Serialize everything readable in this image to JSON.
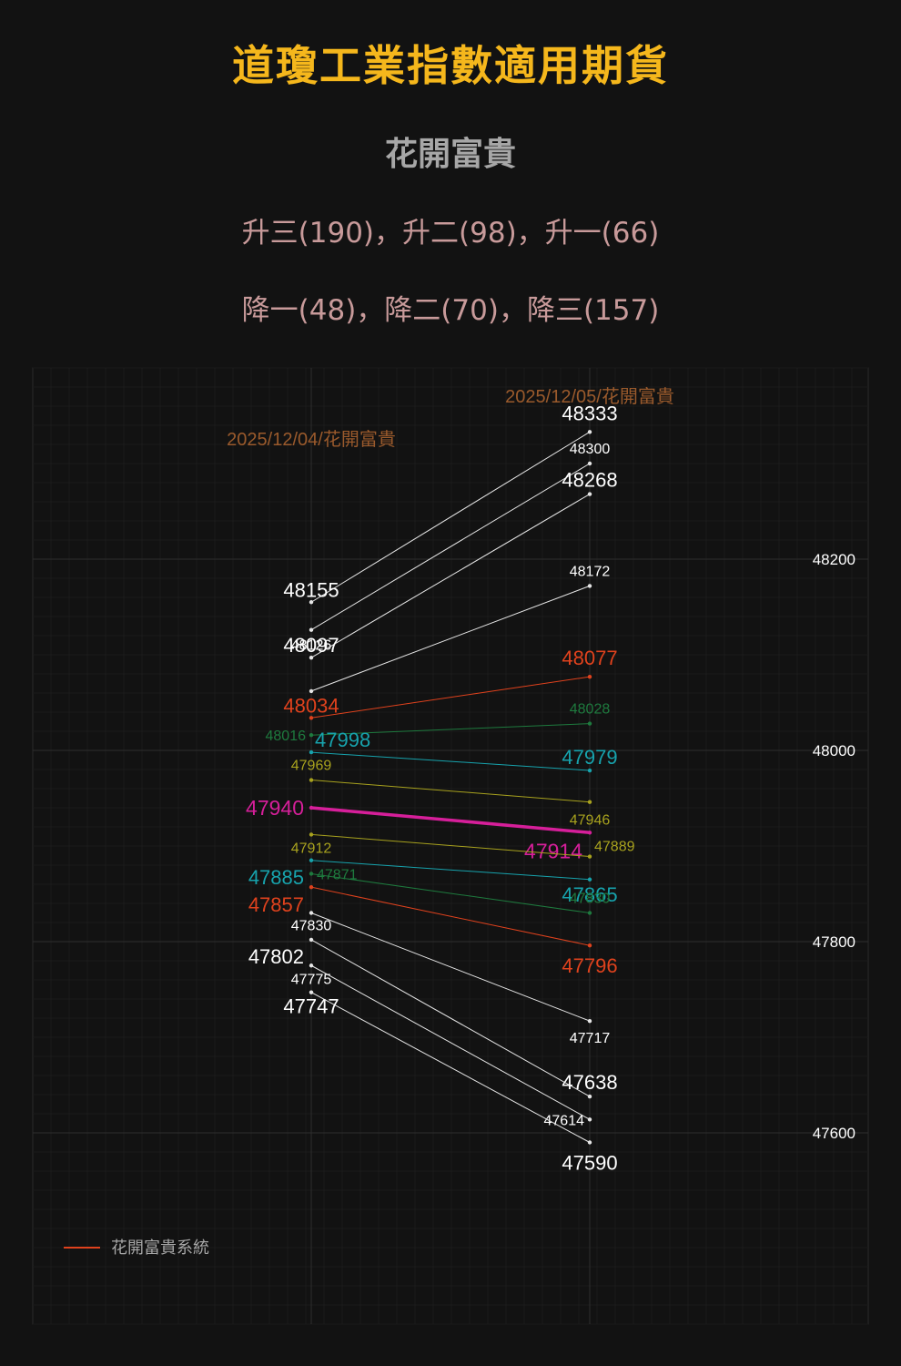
{
  "header": {
    "title": "道瓊工業指數適用期貨",
    "subtitle": "花開富貴",
    "summary_up": "升三(190)，升二(98)，升一(66)",
    "summary_down": "降一(48)，降二(70)，降三(157)"
  },
  "chart_data": {
    "type": "line",
    "categories": [
      "2025/12/04/花開富貴",
      "2025/12/05/花開富貴"
    ],
    "y_ticks": [
      "48200",
      "48000",
      "47800",
      "47600"
    ],
    "ylim": [
      47400,
      48400
    ],
    "grid": true,
    "legend": {
      "label": "花開富貴系統",
      "position": "bottom-left"
    },
    "series": [
      {
        "values": [
          48155,
          48333
        ],
        "color": "#e6e6e6",
        "label_size": "large"
      },
      {
        "values": [
          48126,
          48300
        ],
        "color": "#e6e6e6",
        "label_size": "small"
      },
      {
        "values": [
          48097,
          48268
        ],
        "color": "#e6e6e6",
        "label_size": "large"
      },
      {
        "values": [
          48062,
          48172
        ],
        "color": "#e6e6e6",
        "label_size": "small",
        "show_start_label": false
      },
      {
        "values": [
          48034,
          48077
        ],
        "color": "#e0421d",
        "label_size": "large"
      },
      {
        "values": [
          48016,
          48028
        ],
        "color": "#1e7a3e",
        "label_size": "small"
      },
      {
        "values": [
          47998,
          47979
        ],
        "color": "#17a3ad",
        "label_size": "large"
      },
      {
        "values": [
          47969,
          47946
        ],
        "color": "#a8a21e",
        "label_size": "small"
      },
      {
        "values": [
          47940,
          47914
        ],
        "color": "#d61f9a",
        "label_size": "large",
        "bold": true
      },
      {
        "values": [
          47912,
          47889
        ],
        "color": "#a8a21e",
        "label_size": "small"
      },
      {
        "values": [
          47885,
          47865
        ],
        "color": "#17a3ad",
        "label_size": "large"
      },
      {
        "values": [
          47871,
          47830
        ],
        "color": "#1e7a3e",
        "label_size": "small"
      },
      {
        "values": [
          47857,
          47796
        ],
        "color": "#e0421d",
        "label_size": "large"
      },
      {
        "values": [
          47830,
          47717
        ],
        "color": "#e6e6e6",
        "label_size": "small"
      },
      {
        "values": [
          47802,
          47638
        ],
        "color": "#e6e6e6",
        "label_size": "large"
      },
      {
        "values": [
          47775,
          47614
        ],
        "color": "#e6e6e6",
        "label_size": "small"
      },
      {
        "values": [
          47747,
          47590
        ],
        "color": "#e6e6e6",
        "label_size": "large"
      }
    ]
  }
}
